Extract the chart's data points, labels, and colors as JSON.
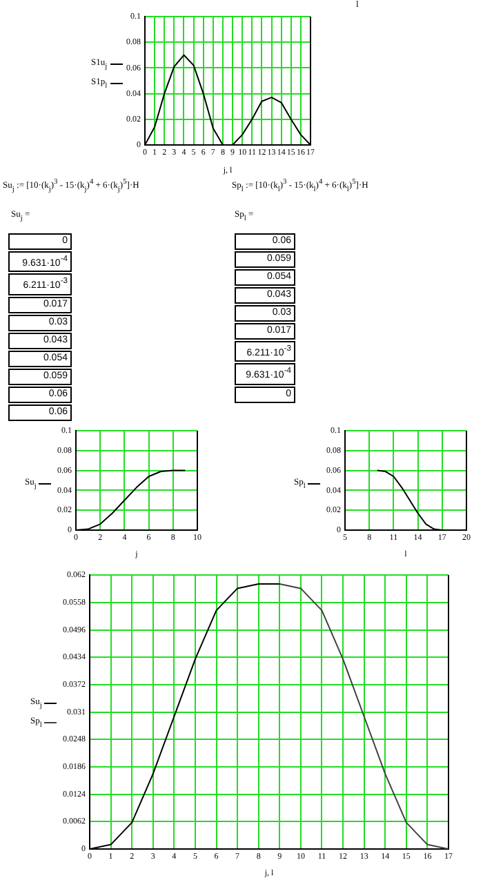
{
  "chart_data": [
    {
      "type": "line",
      "xlabel": "j, l",
      "xlim": [
        0,
        17
      ],
      "xticks": [
        0,
        1,
        2,
        3,
        4,
        5,
        6,
        7,
        8,
        9,
        10,
        11,
        12,
        13,
        14,
        15,
        16,
        17
      ],
      "ylim": [
        0,
        0.1
      ],
      "yticks": [
        0,
        0.02,
        0.04,
        0.06,
        0.08,
        0.1
      ],
      "grid": true,
      "legend": "left",
      "annotations": [
        "l"
      ],
      "series": [
        {
          "name": "S1u$_{j}$",
          "color": "#000000",
          "x": [
            0,
            1,
            2,
            3,
            4,
            5,
            6,
            7,
            8
          ],
          "values": [
            0,
            0.014,
            0.04,
            0.061,
            0.07,
            0.062,
            0.04,
            0.013,
            0
          ]
        },
        {
          "name": "S1p$_{l}$",
          "color": "#000000",
          "x": [
            9,
            10,
            11,
            12,
            13,
            14,
            15,
            16,
            17
          ],
          "values": [
            0,
            0.008,
            0.02,
            0.034,
            0.037,
            0.033,
            0.02,
            0.008,
            0
          ]
        }
      ]
    },
    {
      "type": "other",
      "annotations": [
        "Su$_{j}$ := [10·(k$_{j}$)$^{3}$ - 15·(k$_{j}$)$^{4}$ + 6·(k$_{j}$)$^{5}$]·H",
        "Su$_{j}$ =",
        "0",
        "9.631·10$^{-4}$",
        "6.211·10$^{-3}$",
        "0.017",
        "0.03",
        "0.043",
        "0.054",
        "0.059",
        "0.06",
        "0.06"
      ]
    },
    {
      "type": "other",
      "annotations": [
        "Sp$_{l}$ := [10·(k$_{l}$)$^{3}$ - 15·(k$_{l}$)$^{4}$ + 6·(k$_{l}$)$^{5}$]·H",
        "Sp$_{l}$ =",
        "0.06",
        "0.059",
        "0.054",
        "0.043",
        "0.03",
        "0.017",
        "6.211·10$^{-3}$",
        "9.631·10$^{-4}$",
        "0"
      ]
    },
    {
      "type": "line",
      "xlabel": "j",
      "xlim": [
        0,
        10
      ],
      "xticks": [
        0,
        2,
        4,
        6,
        8,
        10
      ],
      "ylim": [
        0,
        0.1
      ],
      "yticks": [
        0,
        0.02,
        0.04,
        0.06,
        0.08,
        0.1
      ],
      "grid": true,
      "legend": "left",
      "series": [
        {
          "name": "Su$_{j}$",
          "color": "#000000",
          "x": [
            0,
            1,
            2,
            3,
            4,
            5,
            6,
            7,
            8,
            9
          ],
          "values": [
            0,
            0.001,
            0.006,
            0.017,
            0.03,
            0.043,
            0.054,
            0.059,
            0.06,
            0.06
          ]
        }
      ]
    },
    {
      "type": "line",
      "xlabel": "l",
      "xlim": [
        5,
        20
      ],
      "xticks": [
        5,
        8,
        11,
        14,
        17,
        20
      ],
      "ylim": [
        0,
        0.1
      ],
      "yticks": [
        0,
        0.02,
        0.04,
        0.06,
        0.08,
        0.1
      ],
      "grid": true,
      "legend": "left",
      "series": [
        {
          "name": "Sp$_{l}$",
          "color": "#000000",
          "x": [
            9,
            10,
            11,
            12,
            13,
            14,
            15,
            16,
            17
          ],
          "values": [
            0.06,
            0.059,
            0.054,
            0.043,
            0.03,
            0.017,
            0.006,
            0.001,
            0
          ]
        }
      ]
    },
    {
      "type": "line",
      "xlabel": "j, l",
      "xlim": [
        0,
        17
      ],
      "xticks": [
        0,
        1,
        2,
        3,
        4,
        5,
        6,
        7,
        8,
        9,
        10,
        11,
        12,
        13,
        14,
        15,
        16,
        17
      ],
      "ylim": [
        0,
        0.062
      ],
      "yticks": [
        0,
        0.0062,
        0.0124,
        0.0186,
        0.0248,
        0.031,
        0.0372,
        0.0434,
        0.0496,
        0.0558,
        0.062
      ],
      "grid": true,
      "legend": "left",
      "series": [
        {
          "name": "Su$_{j}$",
          "color": "#000000",
          "x": [
            0,
            1,
            2,
            3,
            4,
            5,
            6,
            7,
            8,
            9
          ],
          "values": [
            0,
            0.001,
            0.006,
            0.017,
            0.03,
            0.043,
            0.054,
            0.059,
            0.06,
            0.06
          ]
        },
        {
          "name": "Sp$_{l}$",
          "color": "#404040",
          "x": [
            9,
            10,
            11,
            12,
            13,
            14,
            15,
            16,
            17
          ],
          "values": [
            0.06,
            0.059,
            0.054,
            0.043,
            0.03,
            0.017,
            0.006,
            0.001,
            0
          ]
        }
      ]
    }
  ]
}
